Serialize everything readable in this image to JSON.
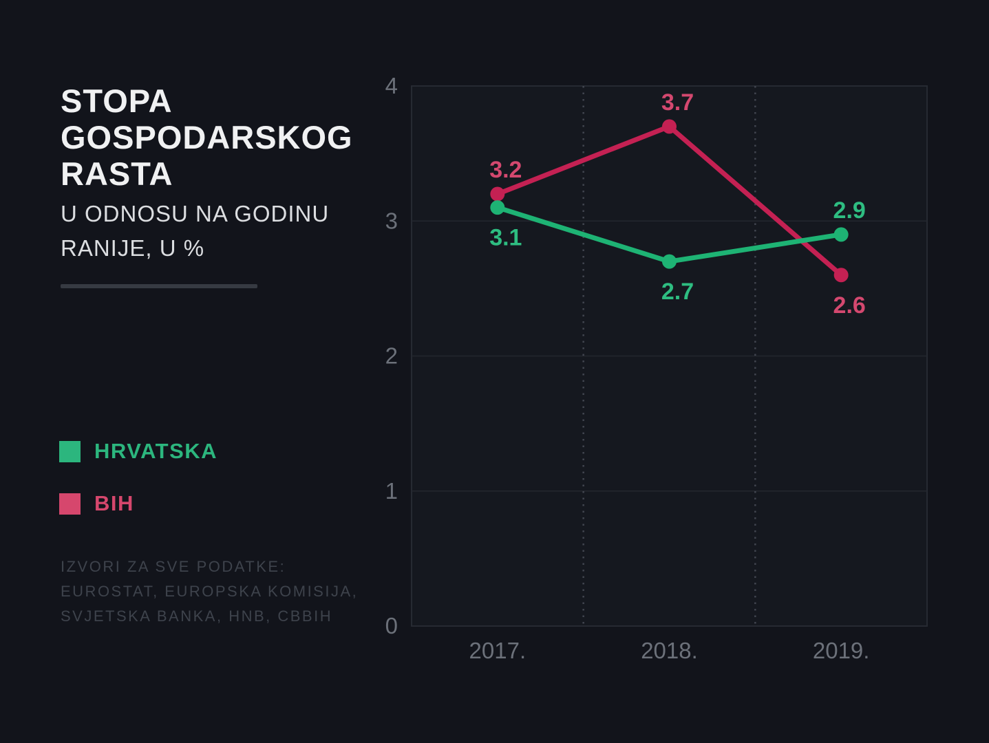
{
  "header": {
    "title": "STOPA\nGOSPODARSKOG\nRASTA",
    "subtitle": "U ODNOSU NA GODINU\nRANIJE, U %"
  },
  "footer": {
    "sources": "IZVORI ZA SVE PODATKE:\nEUROSTAT, EUROPSKA KOMISIJA,\nSVJETSKA BANKA, HNB, CBBIH"
  },
  "colors": {
    "background": "#12141b",
    "plot_bg": "#15181f",
    "plot_border": "#262a32",
    "grid": "#24272f",
    "grid_dotted": "#41454f",
    "axis_text": "#6c717a",
    "title_text": "#f0f1f2",
    "subtitle_text": "#dcdee1",
    "divider": "#363a42",
    "sources_text": "#3e434c"
  },
  "chart_data": {
    "type": "line",
    "title": "STOPA GOSPODARSKOG RASTA",
    "subtitle": "U ODNOSU NA GODINU RANIJE, U %",
    "categories": [
      "2017.",
      "2018.",
      "2019."
    ],
    "series": [
      {
        "name": "HRVATSKA",
        "values": [
          3.1,
          2.7,
          2.9
        ],
        "line_color": "#1eb374",
        "label_color": "#2ebd81",
        "legend_color": "#2cb67e",
        "label_positions": [
          "below",
          "below",
          "above"
        ]
      },
      {
        "name": "BIH",
        "values": [
          3.2,
          3.7,
          2.6
        ],
        "line_color": "#c42153",
        "label_color": "#d4486f",
        "legend_color": "#d6476d",
        "label_positions": [
          "above",
          "above",
          "below"
        ]
      }
    ],
    "xlabel": "",
    "ylabel": "",
    "ylim": [
      0,
      4
    ],
    "yticks": [
      0,
      1,
      2,
      3,
      4
    ],
    "grid": {
      "horizontal": "solid",
      "vertical": "dotted-between-categories"
    },
    "legend_position": "left"
  }
}
